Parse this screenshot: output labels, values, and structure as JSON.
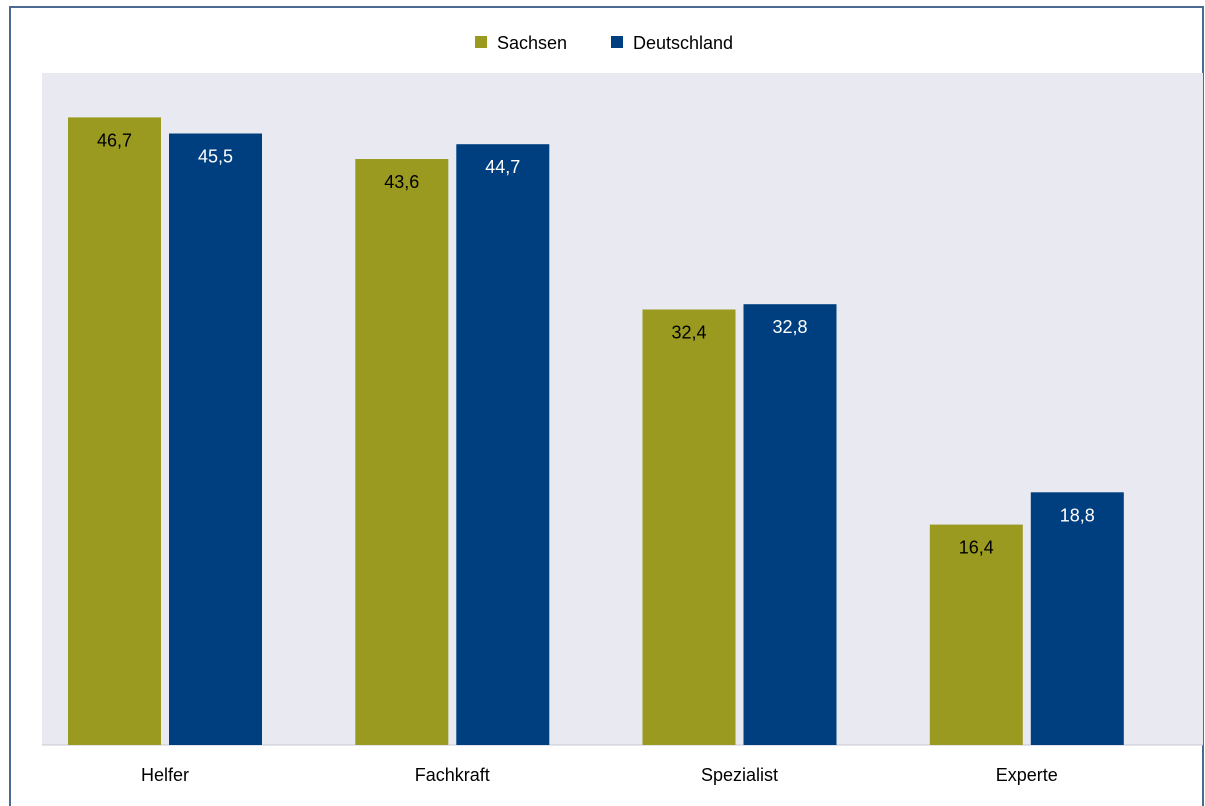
{
  "chart_data": {
    "type": "bar",
    "categories": [
      "Helfer",
      "Fachkraft",
      "Spezialist",
      "Experte"
    ],
    "series": [
      {
        "name": "Sachsen",
        "values": [
          46.7,
          43.6,
          32.4,
          16.4
        ],
        "labels": [
          "46,7",
          "43,6",
          "32,4",
          "16,4"
        ],
        "color": "#9a9a20",
        "label_color": "#000000"
      },
      {
        "name": "Deutschland",
        "values": [
          45.5,
          44.7,
          32.8,
          18.8
        ],
        "labels": [
          "45,5",
          "44,7",
          "32,8",
          "18,8"
        ],
        "color": "#003f7f",
        "label_color": "#ffffff"
      }
    ],
    "ylim": [
      0,
      50
    ],
    "grid": false,
    "legend_position": "top-center",
    "plot_background": "#e9e9f1"
  }
}
